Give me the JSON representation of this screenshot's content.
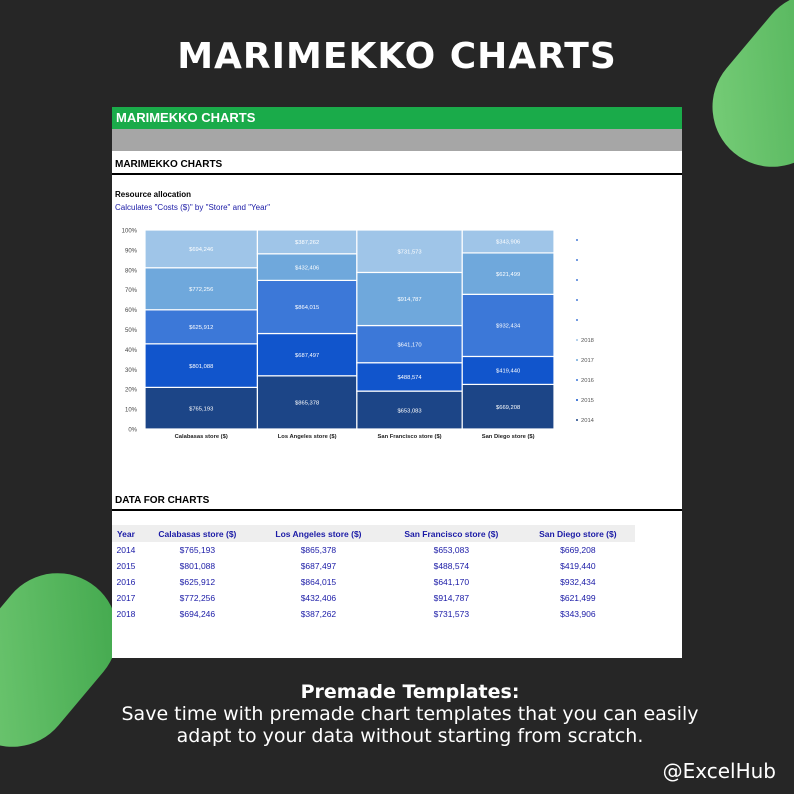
{
  "headline": "MARIMEKKO CHARTS",
  "sheet": {
    "banner": "MARIMEKKO CHARTS",
    "section1_title": "MARIMEKKO CHARTS",
    "chart_title": "Resource allocation",
    "chart_subtitle": "Calculates \"Costs ($)\" by \"Store\" and \"Year\"",
    "section2_title": "DATA FOR CHARTS"
  },
  "table": {
    "headers": [
      "Year",
      "Calabasas store ($)",
      "Los Angeles store ($)",
      "San Francisco store ($)",
      "San Diego store ($)"
    ],
    "rows": [
      [
        "2014",
        "$765,193",
        "$865,378",
        "$653,083",
        "$669,208"
      ],
      [
        "2015",
        "$801,088",
        "$687,497",
        "$488,574",
        "$419,440"
      ],
      [
        "2016",
        "$625,912",
        "$864,015",
        "$641,170",
        "$932,434"
      ],
      [
        "2017",
        "$772,256",
        "$432,406",
        "$914,787",
        "$621,499"
      ],
      [
        "2018",
        "$694,246",
        "$387,262",
        "$731,573",
        "$343,906"
      ]
    ]
  },
  "caption": {
    "title": "Premade Templates:",
    "body": "Save time with premade chart templates that you can easily adapt to your data without starting from scratch."
  },
  "handle": "@ExcelHub",
  "colors": {
    "2014": "#1c4587",
    "2015": "#1155cc",
    "2016": "#3c78d8",
    "2017": "#6fa8dc",
    "2018": "#9fc5e8"
  },
  "chart_data": {
    "type": "marimekko",
    "categories": [
      "Calabasas store ($)",
      "Los Angeles store ($)",
      "San Francisco store ($)",
      "San Diego store ($)"
    ],
    "series": [
      {
        "name": "2014",
        "values": [
          765193,
          865378,
          653083,
          669208
        ],
        "labels": [
          "$765,193",
          "$865,378",
          "$653,083",
          "$669,208"
        ]
      },
      {
        "name": "2015",
        "values": [
          801088,
          687497,
          488574,
          419440
        ],
        "labels": [
          "$801,088",
          "$687,497",
          "$488,574",
          "$419,440"
        ]
      },
      {
        "name": "2016",
        "values": [
          625912,
          864015,
          641170,
          932434
        ],
        "labels": [
          "$625,912",
          "$864,015",
          "$641,170",
          "$932,434"
        ]
      },
      {
        "name": "2017",
        "values": [
          772256,
          432406,
          914787,
          621499
        ],
        "labels": [
          "$772,256",
          "$432,406",
          "$914,787",
          "$621,499"
        ]
      },
      {
        "name": "2018",
        "values": [
          694246,
          387262,
          731573,
          343906
        ],
        "labels": [
          "$694,246",
          "$387,262",
          "$731,573",
          "$343,906"
        ]
      }
    ],
    "yticks": [
      "0%",
      "10%",
      "20%",
      "30%",
      "40%",
      "50%",
      "60%",
      "70%",
      "80%",
      "90%",
      "100%"
    ],
    "legend": [
      "2018",
      "2017",
      "2016",
      "2015",
      "2014"
    ],
    "legend_position": "right"
  }
}
